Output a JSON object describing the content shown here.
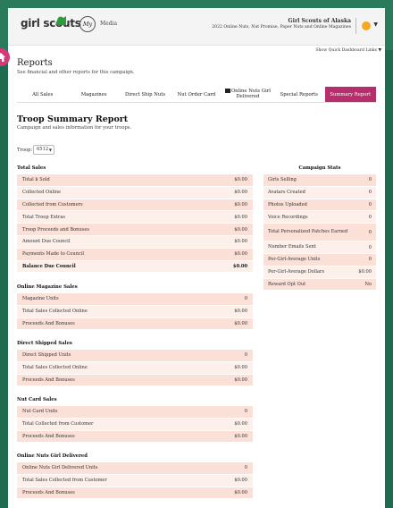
{
  "header": {
    "logo_text": "girl scouts",
    "media_badge": "My",
    "media_label": "Media",
    "council_name": "Girl Scouts of Alaska",
    "council_sub": "2022 Online Nuts, Nut Promise, Paper Nuts and Online Magazines",
    "quick_links": "Show Quick Dashboard Links ▼"
  },
  "reports": {
    "title": "Reports",
    "subtitle": "See financial and other reports for this campaign.",
    "tabs": [
      "All Sales",
      "Magazines",
      "Direct Ship Nuts",
      "Nut Order Card",
      "Online Nuts Girl Delivered",
      "Special Reports",
      "Summary Report"
    ]
  },
  "summary": {
    "title": "Troop Summary Report",
    "subtitle": "Campaign and sales information for your troops.",
    "troop_label": "Troop:",
    "troop_value": "6512"
  },
  "total_sales": {
    "heading": "Total Sales",
    "rows": [
      {
        "label": "Total $ Sold",
        "value": "$0.00"
      },
      {
        "label": "Collected Online",
        "value": "$0.00"
      },
      {
        "label": "Collected from Customers",
        "value": "$0.00"
      },
      {
        "label": "Total Troop Extras",
        "value": "$0.00"
      },
      {
        "label": "Troop Proceeds and Bonuses",
        "value": "$0.00"
      },
      {
        "label": "Amount Due Council",
        "value": "$0.00"
      },
      {
        "label": "Payments Made to Council",
        "value": "$0.00"
      },
      {
        "label": "Balance Due Council",
        "value": "$0.00"
      }
    ]
  },
  "magazine_sales": {
    "heading": "Online Magazine Sales",
    "rows": [
      {
        "label": "Magazine Units",
        "value": "0"
      },
      {
        "label": "Total Sales Collected Online",
        "value": "$0.00"
      },
      {
        "label": "Proceeds And Bonuses",
        "value": "$0.00"
      }
    ]
  },
  "direct_shipped": {
    "heading": "Direct Shipped Sales",
    "rows": [
      {
        "label": "Direct Shipped Units",
        "value": "0"
      },
      {
        "label": "Total Sales Collected Online",
        "value": "$0.00"
      },
      {
        "label": "Proceeds And Bonuses",
        "value": "$0.00"
      }
    ]
  },
  "nut_card": {
    "heading": "Nut Card Sales",
    "rows": [
      {
        "label": "Nut Card Units",
        "value": "0"
      },
      {
        "label": "Total Collected from Customer",
        "value": "$0.00"
      },
      {
        "label": "Proceeds And Bonuses",
        "value": "$0.00"
      }
    ]
  },
  "nuts_delivered": {
    "heading": "Online Nuts Girl Delivered",
    "rows": [
      {
        "label": "Online Nuts Girl Delivered Units",
        "value": "0"
      },
      {
        "label": "Total Sales Collected from Customer",
        "value": "$0.00"
      },
      {
        "label": "Proceeds And Bonuses",
        "value": "$0.00"
      }
    ]
  },
  "campaign_stats": {
    "heading": "Campaign Stats",
    "rows": [
      {
        "label": "Girls Selling",
        "value": "0"
      },
      {
        "label": "Avatars Created",
        "value": "0"
      },
      {
        "label": "Photos Uploaded",
        "value": "0"
      },
      {
        "label": "Voice Recordings",
        "value": "0"
      },
      {
        "label": "Total Personalized Patches Earned",
        "value": "0"
      },
      {
        "label": "Number Emails Sent",
        "value": "0"
      },
      {
        "label": "Per-Girl-Average Units",
        "value": "0"
      },
      {
        "label": "Per-Girl-Average Dollars",
        "value": "$0.00"
      },
      {
        "label": "Reward Opt Out",
        "value": "No"
      }
    ]
  },
  "colors": {
    "accent": "#b72e6c",
    "row_odd": "#fbe0d8",
    "row_even": "#fdf0eb",
    "background": "#1f6b4f"
  }
}
